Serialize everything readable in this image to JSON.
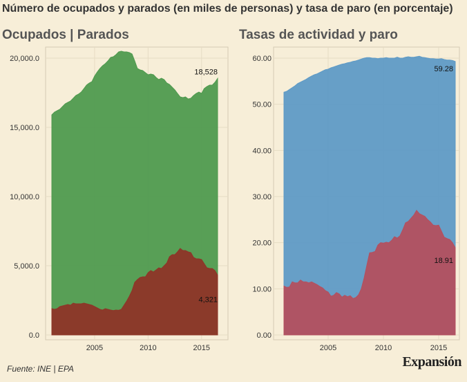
{
  "header": {
    "title": "Número de ocupados y parados (en miles de personas) y tasa de paro (en porcentaje)"
  },
  "panels": {
    "left_title": "Ocupados | Parados",
    "right_title": "Tasas de actividad y paro"
  },
  "footer": {
    "source": "Fuente: INE | EPA",
    "brand": "Expansión"
  },
  "colors": {
    "background": "#f7eed8",
    "plot_border": "#d4cbb4",
    "grid": "#e6dcc4",
    "ocupados": "#4f9a4f",
    "parados": "#8e3528",
    "actividad": "#5f9ac6",
    "paro": "#b3505f"
  },
  "chart_data": [
    {
      "type": "area",
      "title": "Ocupados | Parados",
      "xlabel": "",
      "ylabel": "",
      "xlim": [
        2001.0,
        2016.5
      ],
      "ylim": [
        0,
        20000
      ],
      "x_ticks": [
        2005,
        2010,
        2015
      ],
      "y_ticks": [
        0,
        5000,
        10000,
        15000,
        20000
      ],
      "y_tick_labels": [
        "0.0",
        "5,000.0",
        "10,000.0",
        "15,000.0",
        "20,000.0"
      ],
      "grid": true,
      "annotations": [
        {
          "series": "Ocupados",
          "text": "18,528"
        },
        {
          "series": "Parados",
          "text": "4,321"
        }
      ],
      "series": [
        {
          "name": "Ocupados",
          "color": "#4f9a4f",
          "x": [
            2001.0,
            2001.25,
            2001.5,
            2001.75,
            2002.0,
            2002.25,
            2002.5,
            2002.75,
            2003.0,
            2003.25,
            2003.5,
            2003.75,
            2004.0,
            2004.25,
            2004.5,
            2004.75,
            2005.0,
            2005.25,
            2005.5,
            2005.75,
            2006.0,
            2006.25,
            2006.5,
            2006.75,
            2007.0,
            2007.25,
            2007.5,
            2007.75,
            2008.0,
            2008.25,
            2008.5,
            2008.75,
            2009.0,
            2009.25,
            2009.5,
            2009.75,
            2010.0,
            2010.25,
            2010.5,
            2010.75,
            2011.0,
            2011.25,
            2011.5,
            2011.75,
            2012.0,
            2012.25,
            2012.5,
            2012.75,
            2013.0,
            2013.25,
            2013.5,
            2013.75,
            2014.0,
            2014.25,
            2014.5,
            2014.75,
            2015.0,
            2015.25,
            2015.5,
            2015.75,
            2016.0,
            2016.25,
            2016.5
          ],
          "values": [
            15900,
            16100,
            16200,
            16300,
            16500,
            16700,
            16800,
            16900,
            17100,
            17300,
            17400,
            17550,
            17800,
            18050,
            18200,
            18300,
            18700,
            19000,
            19250,
            19450,
            19600,
            19800,
            20050,
            20100,
            20250,
            20450,
            20500,
            20450,
            20450,
            20400,
            20300,
            19800,
            19250,
            19150,
            19100,
            18950,
            18800,
            18850,
            18800,
            18600,
            18450,
            18550,
            18450,
            18200,
            18100,
            17900,
            17700,
            17450,
            17200,
            17150,
            17200,
            17050,
            17100,
            17300,
            17450,
            17550,
            17450,
            17800,
            17950,
            18050,
            18050,
            18250,
            18528
          ]
        },
        {
          "name": "Parados",
          "color": "#8e3528",
          "x": [
            2001.0,
            2001.25,
            2001.5,
            2001.75,
            2002.0,
            2002.25,
            2002.5,
            2002.75,
            2003.0,
            2003.25,
            2003.5,
            2003.75,
            2004.0,
            2004.25,
            2004.5,
            2004.75,
            2005.0,
            2005.25,
            2005.5,
            2005.75,
            2006.0,
            2006.25,
            2006.5,
            2006.75,
            2007.0,
            2007.25,
            2007.5,
            2007.75,
            2008.0,
            2008.25,
            2008.5,
            2008.75,
            2009.0,
            2009.25,
            2009.5,
            2009.75,
            2010.0,
            2010.25,
            2010.5,
            2010.75,
            2011.0,
            2011.25,
            2011.5,
            2011.75,
            2012.0,
            2012.25,
            2012.5,
            2012.75,
            2013.0,
            2013.25,
            2013.5,
            2013.75,
            2014.0,
            2014.25,
            2014.5,
            2014.75,
            2015.0,
            2015.25,
            2015.5,
            2015.75,
            2016.0,
            2016.25,
            2016.5
          ],
          "values": [
            1900,
            1850,
            1900,
            2050,
            2100,
            2150,
            2200,
            2150,
            2300,
            2250,
            2250,
            2250,
            2300,
            2250,
            2200,
            2150,
            2050,
            1950,
            1850,
            1800,
            1900,
            1850,
            1800,
            1760,
            1800,
            1780,
            1850,
            2150,
            2450,
            2800,
            3200,
            3800,
            4000,
            4150,
            4200,
            4200,
            4500,
            4650,
            4550,
            4700,
            4850,
            4800,
            5000,
            5200,
            5650,
            5800,
            5800,
            6000,
            6250,
            6100,
            6100,
            6000,
            5950,
            5600,
            5500,
            5500,
            5450,
            5150,
            4850,
            4800,
            4800,
            4650,
            4321
          ]
        }
      ]
    },
    {
      "type": "area",
      "title": "Tasas de actividad y paro",
      "xlabel": "",
      "ylabel": "",
      "xlim": [
        2001.0,
        2016.5
      ],
      "ylim": [
        0,
        60
      ],
      "x_ticks": [
        2005,
        2010,
        2015
      ],
      "y_ticks": [
        0,
        10,
        20,
        30,
        40,
        50,
        60
      ],
      "y_tick_labels": [
        "0.00",
        "10.00",
        "20.00",
        "30.00",
        "40.00",
        "50.00",
        "60.00"
      ],
      "grid": true,
      "annotations": [
        {
          "series": "Tasa de actividad",
          "text": "59.28"
        },
        {
          "series": "Tasa de paro",
          "text": "18.91"
        }
      ],
      "series": [
        {
          "name": "Tasa de actividad",
          "color": "#5f9ac6",
          "x": [
            2001.0,
            2001.25,
            2001.5,
            2001.75,
            2002.0,
            2002.25,
            2002.5,
            2002.75,
            2003.0,
            2003.25,
            2003.5,
            2003.75,
            2004.0,
            2004.25,
            2004.5,
            2004.75,
            2005.0,
            2005.25,
            2005.5,
            2005.75,
            2006.0,
            2006.25,
            2006.5,
            2006.75,
            2007.0,
            2007.25,
            2007.5,
            2007.75,
            2008.0,
            2008.25,
            2008.5,
            2008.75,
            2009.0,
            2009.25,
            2009.5,
            2009.75,
            2010.0,
            2010.25,
            2010.5,
            2010.75,
            2011.0,
            2011.25,
            2011.5,
            2011.75,
            2012.0,
            2012.25,
            2012.5,
            2012.75,
            2013.0,
            2013.25,
            2013.5,
            2013.75,
            2014.0,
            2014.25,
            2014.5,
            2014.75,
            2015.0,
            2015.25,
            2015.5,
            2015.75,
            2016.0,
            2016.25,
            2016.5
          ],
          "values": [
            52.6,
            52.8,
            53.2,
            53.6,
            54.0,
            54.5,
            54.8,
            55.1,
            55.4,
            55.8,
            56.1,
            56.4,
            56.6,
            56.9,
            57.2,
            57.5,
            57.6,
            57.9,
            58.1,
            58.3,
            58.5,
            58.7,
            58.8,
            59.0,
            59.1,
            59.3,
            59.4,
            59.6,
            59.8,
            60.0,
            60.1,
            60.1,
            60.0,
            60.0,
            59.9,
            60.0,
            60.0,
            60.1,
            60.0,
            60.0,
            60.0,
            60.2,
            60.0,
            60.0,
            60.2,
            60.3,
            60.2,
            60.2,
            60.3,
            60.4,
            60.2,
            60.1,
            60.0,
            59.9,
            59.9,
            59.8,
            59.8,
            59.9,
            59.7,
            59.6,
            59.6,
            59.5,
            59.28
          ]
        },
        {
          "name": "Tasa de paro",
          "color": "#b3505f",
          "x": [
            2001.0,
            2001.25,
            2001.5,
            2001.75,
            2002.0,
            2002.25,
            2002.5,
            2002.75,
            2003.0,
            2003.25,
            2003.5,
            2003.75,
            2004.0,
            2004.25,
            2004.5,
            2004.75,
            2005.0,
            2005.25,
            2005.5,
            2005.75,
            2006.0,
            2006.25,
            2006.5,
            2006.75,
            2007.0,
            2007.25,
            2007.5,
            2007.75,
            2008.0,
            2008.25,
            2008.5,
            2008.75,
            2009.0,
            2009.25,
            2009.5,
            2009.75,
            2010.0,
            2010.25,
            2010.5,
            2010.75,
            2011.0,
            2011.25,
            2011.5,
            2011.75,
            2012.0,
            2012.25,
            2012.5,
            2012.75,
            2013.0,
            2013.25,
            2013.5,
            2013.75,
            2014.0,
            2014.25,
            2014.5,
            2014.75,
            2015.0,
            2015.25,
            2015.5,
            2015.75,
            2016.0,
            2016.25,
            2016.5
          ],
          "values": [
            10.6,
            10.3,
            10.4,
            11.5,
            11.3,
            11.3,
            11.9,
            11.5,
            11.5,
            11.3,
            11.5,
            11.2,
            10.9,
            10.5,
            10.2,
            9.6,
            9.3,
            8.4,
            8.6,
            9.2,
            8.9,
            8.2,
            8.6,
            8.3,
            8.5,
            7.9,
            8.1,
            8.7,
            10.0,
            12.3,
            15.1,
            17.8,
            17.9,
            18.1,
            19.5,
            20.0,
            19.9,
            20.1,
            20.0,
            20.5,
            21.3,
            21.0,
            21.5,
            22.8,
            24.3,
            24.6,
            25.3,
            26.0,
            27.0,
            26.3,
            26.0,
            25.7,
            25.0,
            24.5,
            23.8,
            23.7,
            23.8,
            22.5,
            21.2,
            20.9,
            20.7,
            20.0,
            18.91
          ]
        }
      ]
    }
  ]
}
